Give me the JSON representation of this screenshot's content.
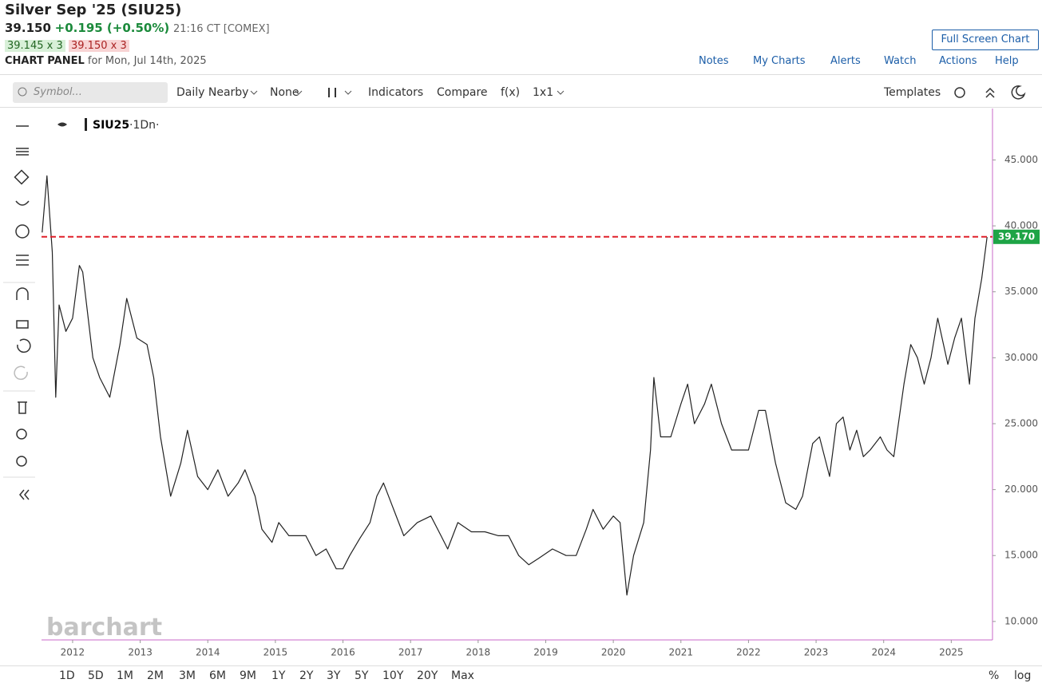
{
  "header": {
    "title": "Silver Sep '25 (SIU25)",
    "price": "39.150",
    "change": "+0.195 (+0.50%)",
    "time": "21:16 CT [COMEX]",
    "bid": "39.145 x 3",
    "ask": "39.150 x 3",
    "panel_label": "CHART PANEL",
    "panel_date": "for Mon, Jul 14th, 2025",
    "full_screen": "Full Screen Chart"
  },
  "nav": [
    "Notes",
    "My Charts",
    "Alerts",
    "Watch",
    "Actions",
    "Help"
  ],
  "toolbar": {
    "symbol_placeholder": "Symbol...",
    "items": [
      "Daily Nearby",
      "None",
      "Indicators",
      "Compare",
      "f(x)",
      "1x1"
    ],
    "templates": "Templates"
  },
  "ranges": [
    "1D",
    "5D",
    "1M",
    "2M",
    "3M",
    "6M",
    "9M",
    "1Y",
    "2Y",
    "3Y",
    "5Y",
    "10Y",
    "20Y",
    "Max"
  ],
  "bottom_right": [
    "%",
    "log"
  ],
  "chart_data": {
    "type": "line",
    "legend_symbol": "SIU25",
    "legend_interval": "·1Dn·",
    "watermark": "barchart",
    "x": [
      2011.55,
      2011.62,
      2011.7,
      2011.75,
      2011.8,
      2011.9,
      2012.0,
      2012.1,
      2012.15,
      2012.3,
      2012.4,
      2012.55,
      2012.7,
      2012.8,
      2012.95,
      2013.1,
      2013.2,
      2013.3,
      2013.45,
      2013.6,
      2013.7,
      2013.85,
      2014.0,
      2014.15,
      2014.3,
      2014.45,
      2014.55,
      2014.7,
      2014.8,
      2014.95,
      2015.05,
      2015.2,
      2015.35,
      2015.45,
      2015.6,
      2015.75,
      2015.9,
      2016.0,
      2016.1,
      2016.25,
      2016.4,
      2016.5,
      2016.6,
      2016.75,
      2016.9,
      2017.1,
      2017.3,
      2017.45,
      2017.55,
      2017.7,
      2017.9,
      2018.1,
      2018.3,
      2018.45,
      2018.6,
      2018.75,
      2018.9,
      2019.1,
      2019.3,
      2019.45,
      2019.6,
      2019.7,
      2019.85,
      2020.0,
      2020.1,
      2020.2,
      2020.3,
      2020.45,
      2020.55,
      2020.6,
      2020.7,
      2020.85,
      2021.0,
      2021.1,
      2021.2,
      2021.35,
      2021.45,
      2021.6,
      2021.75,
      2021.9,
      2022.0,
      2022.15,
      2022.25,
      2022.4,
      2022.55,
      2022.7,
      2022.8,
      2022.95,
      2023.05,
      2023.2,
      2023.3,
      2023.4,
      2023.5,
      2023.6,
      2023.7,
      2023.8,
      2023.95,
      2024.05,
      2024.15,
      2024.3,
      2024.4,
      2024.5,
      2024.6,
      2024.7,
      2024.8,
      2024.95,
      2025.05,
      2025.15,
      2025.27,
      2025.35,
      2025.45,
      2025.53
    ],
    "series": [
      {
        "name": "SIU25",
        "color": "#222222",
        "values": [
          39.5,
          43.8,
          38,
          27,
          34,
          32,
          33,
          37,
          36.5,
          30,
          28.5,
          27,
          31,
          34.5,
          31.5,
          31,
          28.5,
          24,
          19.5,
          22,
          24.5,
          21,
          20,
          21.5,
          19.5,
          20.5,
          21.5,
          19.5,
          17,
          16,
          17.5,
          16.5,
          16.5,
          16.5,
          15,
          15.5,
          14,
          14,
          15,
          16.3,
          17.5,
          19.5,
          20.5,
          18.5,
          16.5,
          17.5,
          18,
          16.5,
          15.5,
          17.5,
          16.8,
          16.8,
          16.5,
          16.5,
          15,
          14.3,
          14.8,
          15.5,
          15,
          15,
          17,
          18.5,
          17,
          18,
          17.5,
          12,
          15,
          17.5,
          23,
          28.5,
          24,
          24,
          26.5,
          28,
          25,
          26.5,
          28,
          25,
          23,
          23,
          23,
          26,
          26,
          22,
          19,
          18.5,
          19.5,
          23.5,
          24,
          21,
          25,
          25.5,
          23,
          24.5,
          22.5,
          23,
          24,
          23,
          22.5,
          28,
          31,
          30,
          28,
          30,
          33,
          29.5,
          31.5,
          33,
          28,
          33,
          36,
          39.15
        ]
      }
    ],
    "xlim": [
      2011.54,
      2025.61
    ],
    "xticks": [
      2012,
      2013,
      2014,
      2015,
      2016,
      2017,
      2018,
      2019,
      2020,
      2021,
      2022,
      2023,
      2024,
      2025
    ],
    "ylim": [
      8.6,
      48.9
    ],
    "yticks": [
      {
        "value": 10,
        "label": "10.000"
      },
      {
        "value": 15,
        "label": "15.000"
      },
      {
        "value": 20,
        "label": "20.000"
      },
      {
        "value": 25,
        "label": "25.000"
      },
      {
        "value": 30,
        "label": "30.000"
      },
      {
        "value": 35,
        "label": "35.000"
      },
      {
        "value": 40,
        "label": "40.000"
      },
      {
        "value": 45,
        "label": "45.000"
      }
    ],
    "grid": false,
    "price_line": {
      "value": 39.17,
      "label": "39.170",
      "color": "#e0202a",
      "label_color": "#1ea446"
    }
  }
}
